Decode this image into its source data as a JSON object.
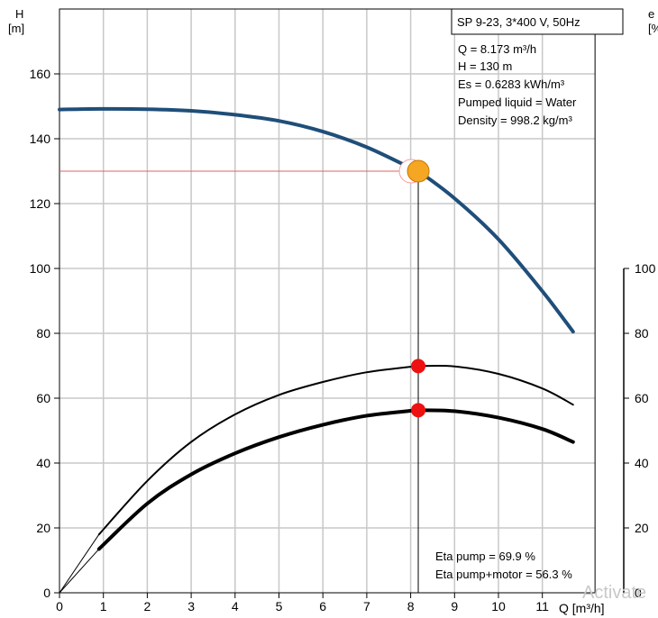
{
  "chart_data": {
    "type": "line",
    "title": "SP 9-23, 3*400 V, 50Hz",
    "xlabel": "Q [m³/h]",
    "ylabel_left": "H",
    "ylabel_left_unit": "[m]",
    "ylabel_right": "e",
    "ylabel_right_unit": "[%",
    "xlim": [
      0,
      12.2
    ],
    "ylim": [
      0,
      180
    ],
    "x_ticks": [
      0,
      1,
      2,
      3,
      4,
      5,
      6,
      7,
      8,
      9,
      10,
      11
    ],
    "y_left_ticks": [
      0,
      20,
      40,
      60,
      80,
      100,
      120,
      140,
      160
    ],
    "y_right_ticks": [
      0,
      20,
      40,
      60,
      80,
      100
    ],
    "y_right_tick_labels": [
      "0",
      "20",
      "40",
      "60",
      "80",
      "100"
    ],
    "grid": true,
    "series": [
      {
        "key": "head",
        "color": "#1f4e79",
        "points": [
          [
            0,
            149
          ],
          [
            0.9,
            149.2
          ],
          [
            2,
            149.1
          ],
          [
            3,
            148.6
          ],
          [
            4,
            147.4
          ],
          [
            5,
            145.5
          ],
          [
            6,
            142.2
          ],
          [
            7,
            137.4
          ],
          [
            8,
            131
          ],
          [
            8.173,
            130
          ],
          [
            9,
            121.6
          ],
          [
            10,
            109
          ],
          [
            11,
            93
          ],
          [
            11.7,
            80.5
          ]
        ]
      },
      {
        "key": "eta-pump",
        "color": "#000000",
        "points": [
          [
            0.9,
            18
          ],
          [
            2,
            34.5
          ],
          [
            3,
            46.5
          ],
          [
            4,
            55
          ],
          [
            5,
            61
          ],
          [
            6,
            65
          ],
          [
            7,
            68
          ],
          [
            8,
            69.7
          ],
          [
            8.173,
            69.9
          ],
          [
            9,
            69.8
          ],
          [
            10,
            67.5
          ],
          [
            11,
            63
          ],
          [
            11.7,
            58
          ]
        ]
      },
      {
        "key": "eta-pump-motor",
        "color": "#000000",
        "points": [
          [
            0.9,
            13.5
          ],
          [
            2,
            27.5
          ],
          [
            3,
            36.5
          ],
          [
            4,
            43
          ],
          [
            5,
            48
          ],
          [
            6,
            51.8
          ],
          [
            7,
            54.6
          ],
          [
            8,
            56.1
          ],
          [
            8.173,
            56.3
          ],
          [
            9,
            56
          ],
          [
            10,
            54
          ],
          [
            11,
            50.5
          ],
          [
            11.7,
            46.5
          ]
        ]
      }
    ],
    "extrapolation_lines": [
      [
        [
          0,
          0
        ],
        [
          0.9,
          18
        ]
      ],
      [
        [
          0,
          0
        ],
        [
          0.9,
          13.5
        ]
      ]
    ],
    "duty_point": {
      "q": 8.173,
      "h": 130,
      "eta_pump": 69.9,
      "eta_total": 56.3
    },
    "info_box": [
      "Q = 8.173 m³/h",
      "H = 130 m",
      "Es = 0.6283 kWh/m³",
      "Pumped liquid = Water",
      "Density = 998.2 kg/m³"
    ],
    "eta_annotations": [
      "Eta pump = 69.9 %",
      "Eta pump+motor = 56.3 %"
    ],
    "colors": {
      "head_curve": "#1f4e79",
      "duty_marker": "#f5a623",
      "eta_marker": "#ee1111",
      "guide_line": "#e06060",
      "grid": "#c8c8c8"
    }
  },
  "watermark": "Activate"
}
